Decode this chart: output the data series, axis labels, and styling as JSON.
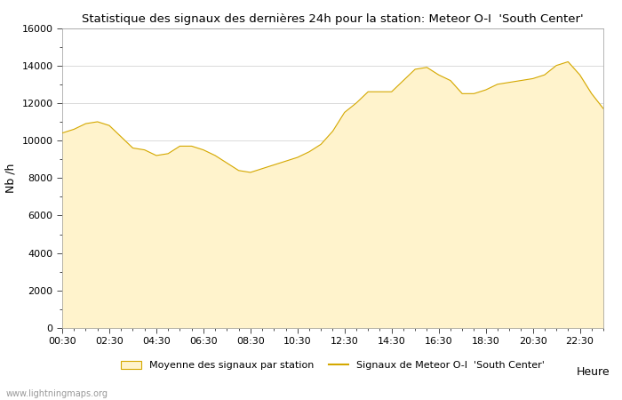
{
  "title": "Statistique des signaux des dernières 24h pour la station: Meteor O-I  'South Center'",
  "xlabel": "Heure",
  "ylabel": "Nb /h",
  "ylim": [
    0,
    16000
  ],
  "yticks": [
    0,
    2000,
    4000,
    6000,
    8000,
    10000,
    12000,
    14000,
    16000
  ],
  "fill_color": "#FFF3CC",
  "line_color": "#D4A800",
  "bg_color": "#FFFFFF",
  "watermark": "www.lightningmaps.org",
  "legend_fill_label": "Moyenne des signaux par station",
  "legend_line_label": "Signaux de Meteor O-I  'South Center'",
  "x_hours": [
    0.5,
    1.0,
    1.5,
    2.0,
    2.5,
    3.0,
    3.5,
    4.0,
    4.5,
    5.0,
    5.5,
    6.0,
    6.5,
    7.0,
    7.5,
    8.0,
    8.5,
    9.0,
    9.5,
    10.0,
    10.5,
    11.0,
    11.5,
    12.0,
    12.5,
    13.0,
    13.5,
    14.0,
    14.5,
    15.0,
    15.5,
    16.0,
    16.5,
    17.0,
    17.5,
    18.0,
    18.5,
    19.0,
    19.5,
    20.0,
    20.5,
    21.0,
    21.5,
    22.0,
    22.5,
    23.0,
    23.5
  ],
  "y_values": [
    10400,
    10600,
    10900,
    11000,
    10800,
    10200,
    9600,
    9500,
    9200,
    9300,
    9700,
    9700,
    9500,
    9200,
    8800,
    8400,
    8300,
    8500,
    8700,
    8900,
    9100,
    9400,
    9800,
    10500,
    11500,
    12000,
    12600,
    12600,
    12600,
    13200,
    13800,
    13900,
    13500,
    13200,
    12500,
    12500,
    12700,
    13000,
    13100,
    13200,
    13300,
    13500,
    14000,
    14200,
    13500,
    12500,
    11700
  ],
  "xtick_positions": [
    0.5,
    2.5,
    4.5,
    6.5,
    8.5,
    10.5,
    12.5,
    14.5,
    16.5,
    18.5,
    20.5,
    22.5
  ],
  "xtick_labels": [
    "00:30",
    "02:30",
    "04:30",
    "06:30",
    "08:30",
    "10:30",
    "12:30",
    "14:30",
    "16:30",
    "18:30",
    "20:30",
    "22:30"
  ]
}
